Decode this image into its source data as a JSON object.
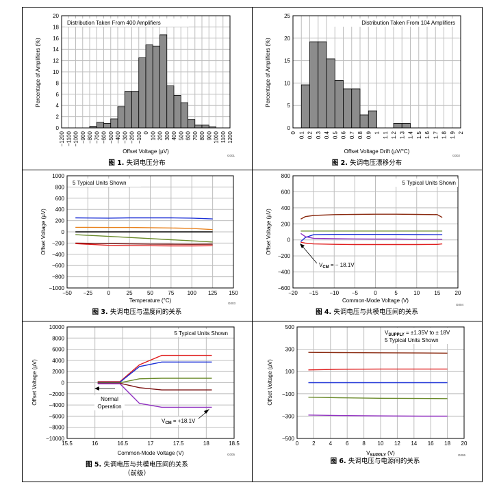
{
  "panels": [
    {
      "caption_prefix": "图 1.",
      "caption": "失调电压分布",
      "code": "G001",
      "chart_data": {
        "type": "bar",
        "annotation": "Distribution Taken From 400 Amplifiers",
        "xlabel": "Offset Voltage (µV)",
        "ylabel": "Percentage of Amplifiers (%)",
        "ylim": [
          0,
          20
        ],
        "yticks": [
          "0",
          "2",
          "4",
          "6",
          "8",
          "10",
          "12",
          "14",
          "16",
          "18",
          "20"
        ],
        "xticks": [
          "−1200",
          "−1100",
          "−1000",
          "−900",
          "−800",
          "−700",
          "−600",
          "−500",
          "−400",
          "−300",
          "−200",
          "−100",
          "0",
          "100",
          "200",
          "300",
          "400",
          "500",
          "600",
          "700",
          "800",
          "900",
          "1000",
          "1100",
          "1200"
        ],
        "bin_edges": [
          -1200,
          -1100,
          -1000,
          -900,
          -800,
          -700,
          -600,
          -500,
          -400,
          -300,
          -200,
          -100,
          0,
          100,
          200,
          300,
          400,
          500,
          600,
          700,
          800,
          900,
          1000,
          1100,
          1200
        ],
        "values": [
          0,
          0,
          0,
          0,
          0.3,
          1.0,
          0.8,
          1.6,
          3.8,
          6.5,
          6.5,
          12.5,
          14.8,
          14.6,
          16.6,
          7.5,
          5.8,
          4.5,
          1.5,
          0.5,
          0.5,
          0.2,
          0,
          0
        ],
        "grid": true
      }
    },
    {
      "caption_prefix": "图 2.",
      "caption": "失调电压漂移分布",
      "code": "G002",
      "chart_data": {
        "type": "bar",
        "annotation": "Distribution Taken From 104 Amplifiers",
        "xlabel": "Offset Voltage Drift (µV/°C)",
        "ylabel": "Percentage of Amplifiers (%)",
        "ylim": [
          0,
          25
        ],
        "yticks": [
          "0",
          "5",
          "10",
          "15",
          "20",
          "25"
        ],
        "xticks": [
          "0",
          "0.1",
          "0.2",
          "0.3",
          "0.4",
          "0.5",
          "0.6",
          "0.7",
          "0.8",
          "0.9",
          "1",
          "1.1",
          "1.2",
          "1.3",
          "1.4",
          "1.5",
          "1.6",
          "1.7",
          "1.8",
          "1.9",
          "2"
        ],
        "bin_edges": [
          0,
          0.1,
          0.2,
          0.3,
          0.4,
          0.5,
          0.6,
          0.7,
          0.8,
          0.9,
          1.0,
          1.1,
          1.2,
          1.3,
          1.4,
          1.5,
          1.6,
          1.7,
          1.8,
          1.9,
          2.0
        ],
        "values": [
          0,
          9.6,
          19.2,
          19.2,
          15.4,
          10.6,
          8.7,
          8.7,
          2.9,
          3.8,
          0,
          0,
          1.0,
          1.0,
          0,
          0,
          0,
          0,
          0,
          0
        ],
        "grid": true
      }
    },
    {
      "caption_prefix": "图 3.",
      "caption": "失调电压与温度间的关系",
      "code": "G003",
      "chart_data": {
        "type": "line",
        "annotation": "5 Typical Units Shown",
        "xlabel": "Temperature (°C)",
        "ylabel": "Offset Voltage (µV)",
        "xlim": [
          -50,
          150
        ],
        "ylim": [
          -1000,
          1000
        ],
        "xticks": [
          "−50",
          "−25",
          "0",
          "25",
          "50",
          "75",
          "100",
          "125",
          "150"
        ],
        "yticks": [
          "−1000",
          "−800",
          "−600",
          "−400",
          "−200",
          "0",
          "200",
          "400",
          "600",
          "800",
          "1000"
        ],
        "grid": true,
        "series": [
          {
            "color": "#1a2fd6",
            "x": [
              -40,
              0,
              25,
              50,
              75,
              100,
              125
            ],
            "y": [
              250,
              245,
              250,
              250,
              250,
              245,
              230
            ]
          },
          {
            "color": "#e8821e",
            "x": [
              -40,
              0,
              25,
              50,
              75,
              100,
              125
            ],
            "y": [
              80,
              78,
              78,
              75,
              70,
              62,
              40
            ]
          },
          {
            "color": "#6a8a2a",
            "x": [
              -40,
              0,
              25,
              50,
              75,
              100,
              125
            ],
            "y": [
              -50,
              -80,
              -100,
              -120,
              -140,
              -160,
              -180
            ]
          },
          {
            "color": "#7a1010",
            "x": [
              -40,
              0,
              25,
              50,
              75,
              100,
              125
            ],
            "y": [
              -200,
              -210,
              -215,
              -218,
              -220,
              -222,
              -220
            ]
          },
          {
            "color": "#e02020",
            "x": [
              -40,
              0,
              25,
              50,
              75,
              100,
              125
            ],
            "y": [
              -210,
              -240,
              -245,
              -248,
              -250,
              -250,
              -248
            ]
          },
          {
            "color": "#000000",
            "x": [
              -40,
              125
            ],
            "y": [
              0,
              0
            ]
          }
        ]
      }
    },
    {
      "caption_prefix": "图 4.",
      "caption": "失调电压与共模电压间的关系",
      "code": "G004",
      "chart_data": {
        "type": "line",
        "annotation": "5 Typical Units Shown",
        "callout": "VCM = − 18.1V",
        "callout_main": "V",
        "callout_sub": "CM",
        "callout_rest": " = − 18.1V",
        "xlabel": "Common-Mode Voltage (V)",
        "ylabel": "Offset Voltage (µV)",
        "xlim": [
          -20,
          20
        ],
        "ylim": [
          -600,
          800
        ],
        "xticks": [
          "−20",
          "−15",
          "−10",
          "−5",
          "0",
          "5",
          "10",
          "15",
          "20"
        ],
        "yticks": [
          "−600",
          "−400",
          "−200",
          "0",
          "200",
          "400",
          "600",
          "800"
        ],
        "grid": true,
        "series": [
          {
            "color": "#8a2a10",
            "x": [
              -18.1,
              -17,
              -15,
              -10,
              -5,
              0,
              5,
              10,
              15,
              16.2
            ],
            "y": [
              260,
              290,
              305,
              315,
              318,
              320,
              320,
              318,
              315,
              280
            ]
          },
          {
            "color": "#6a8a2a",
            "x": [
              -18.1,
              -15,
              -10,
              -5,
              0,
              5,
              10,
              15,
              16.2
            ],
            "y": [
              110,
              110,
              110,
              110,
              110,
              110,
              110,
              110,
              110
            ]
          },
          {
            "color": "#1a2fd6",
            "x": [
              -18.1,
              -17,
              -15,
              -10,
              -5,
              0,
              5,
              10,
              15,
              16.2
            ],
            "y": [
              -20,
              30,
              65,
              68,
              68,
              68,
              68,
              66,
              65,
              65
            ]
          },
          {
            "color": "#9030c0",
            "x": [
              -18.1,
              -17,
              -15,
              -10,
              -5,
              0,
              5,
              10,
              15,
              16.2
            ],
            "y": [
              80,
              40,
              20,
              15,
              12,
              10,
              10,
              8,
              8,
              8
            ]
          },
          {
            "color": "#e02020",
            "x": [
              -18.1,
              -17,
              -15,
              -10,
              -5,
              0,
              5,
              10,
              15,
              16.2
            ],
            "y": [
              -30,
              -40,
              -50,
              -55,
              -58,
              -58,
              -58,
              -58,
              -56,
              -50
            ]
          }
        ]
      }
    },
    {
      "caption_prefix": "图 5.",
      "caption": "失调电压与共模电压间的关系",
      "caption_line2": "（前级）",
      "code": "G005",
      "chart_data": {
        "type": "line",
        "annotation": "5 Typical Units Shown",
        "callout_normal_1": "Normal",
        "callout_normal_2": "Operation",
        "callout_main": "V",
        "callout_sub": "CM",
        "callout_rest": " = +18.1V",
        "xlabel": "Common-Mode Voltage (V)",
        "ylabel": "Offset Voltage (µV)",
        "xlim": [
          15.5,
          18.5
        ],
        "ylim": [
          -10000,
          10000
        ],
        "xticks": [
          "15.5",
          "16",
          "16.5",
          "17",
          "17.5",
          "18",
          "18.5"
        ],
        "yticks": [
          "−10000",
          "−8000",
          "−6000",
          "−4000",
          "−2000",
          "0",
          "2000",
          "4000",
          "6000",
          "8000",
          "10000"
        ],
        "grid": true,
        "series": [
          {
            "color": "#e02020",
            "x": [
              16.05,
              16.45,
              16.8,
              17.2,
              17.6,
              18.1
            ],
            "y": [
              200,
              200,
              3200,
              4900,
              4900,
              4900
            ]
          },
          {
            "color": "#1a2fd6",
            "x": [
              16.05,
              16.45,
              16.8,
              17.2,
              17.6,
              18.1
            ],
            "y": [
              100,
              100,
              2900,
              3700,
              3700,
              3700
            ]
          },
          {
            "color": "#6a8a2a",
            "x": [
              16.05,
              16.45,
              16.8,
              17.2,
              17.6,
              18.1
            ],
            "y": [
              0,
              0,
              700,
              800,
              800,
              800
            ]
          },
          {
            "color": "#7a1010",
            "x": [
              16.05,
              16.45,
              16.8,
              17.2,
              17.6,
              18.1
            ],
            "y": [
              -100,
              -100,
              -900,
              -1300,
              -1300,
              -1300
            ]
          },
          {
            "color": "#9030c0",
            "x": [
              16.05,
              16.45,
              16.8,
              17.2,
              17.6,
              18.1
            ],
            "y": [
              -200,
              -200,
              -3700,
              -4400,
              -4400,
              -4400
            ]
          }
        ]
      }
    },
    {
      "caption_prefix": "图 6.",
      "caption": "失调电压与电源间的关系",
      "code": "G006",
      "chart_data": {
        "type": "line",
        "annotation_1_main": "V",
        "annotation_1_sub": "SUPPLY",
        "annotation_1_rest": " = ±1.35V to ± 18V",
        "annotation_2": "5 Typical Units Shown",
        "xlabel_main": "V",
        "xlabel_sub": "SUPPLY",
        "xlabel_rest": " (V)",
        "ylabel": "Offset Voltage (µV)",
        "xlim": [
          0,
          20
        ],
        "ylim": [
          -500,
          500
        ],
        "xticks": [
          "0",
          "2",
          "4",
          "6",
          "8",
          "10",
          "12",
          "14",
          "16",
          "18",
          "20"
        ],
        "yticks": [
          "−500",
          "−300",
          "−100",
          "100",
          "300",
          "500"
        ],
        "grid": true,
        "series": [
          {
            "color": "#8a2a10",
            "x": [
              1.35,
              5,
              10,
              15,
              18
            ],
            "y": [
              272,
              270,
              268,
              266,
              265
            ]
          },
          {
            "color": "#e02020",
            "x": [
              1.35,
              5,
              10,
              15,
              18
            ],
            "y": [
              115,
              120,
              122,
              122,
              122
            ]
          },
          {
            "color": "#1a2fd6",
            "x": [
              1.35,
              5,
              10,
              15,
              18
            ],
            "y": [
              0,
              0,
              0,
              0,
              0
            ]
          },
          {
            "color": "#6a8a2a",
            "x": [
              1.35,
              5,
              10,
              15,
              18
            ],
            "y": [
              -130,
              -135,
              -140,
              -142,
              -143
            ]
          },
          {
            "color": "#9030c0",
            "x": [
              1.35,
              5,
              10,
              15,
              18
            ],
            "y": [
              -290,
              -295,
              -298,
              -300,
              -300
            ]
          }
        ]
      }
    }
  ]
}
